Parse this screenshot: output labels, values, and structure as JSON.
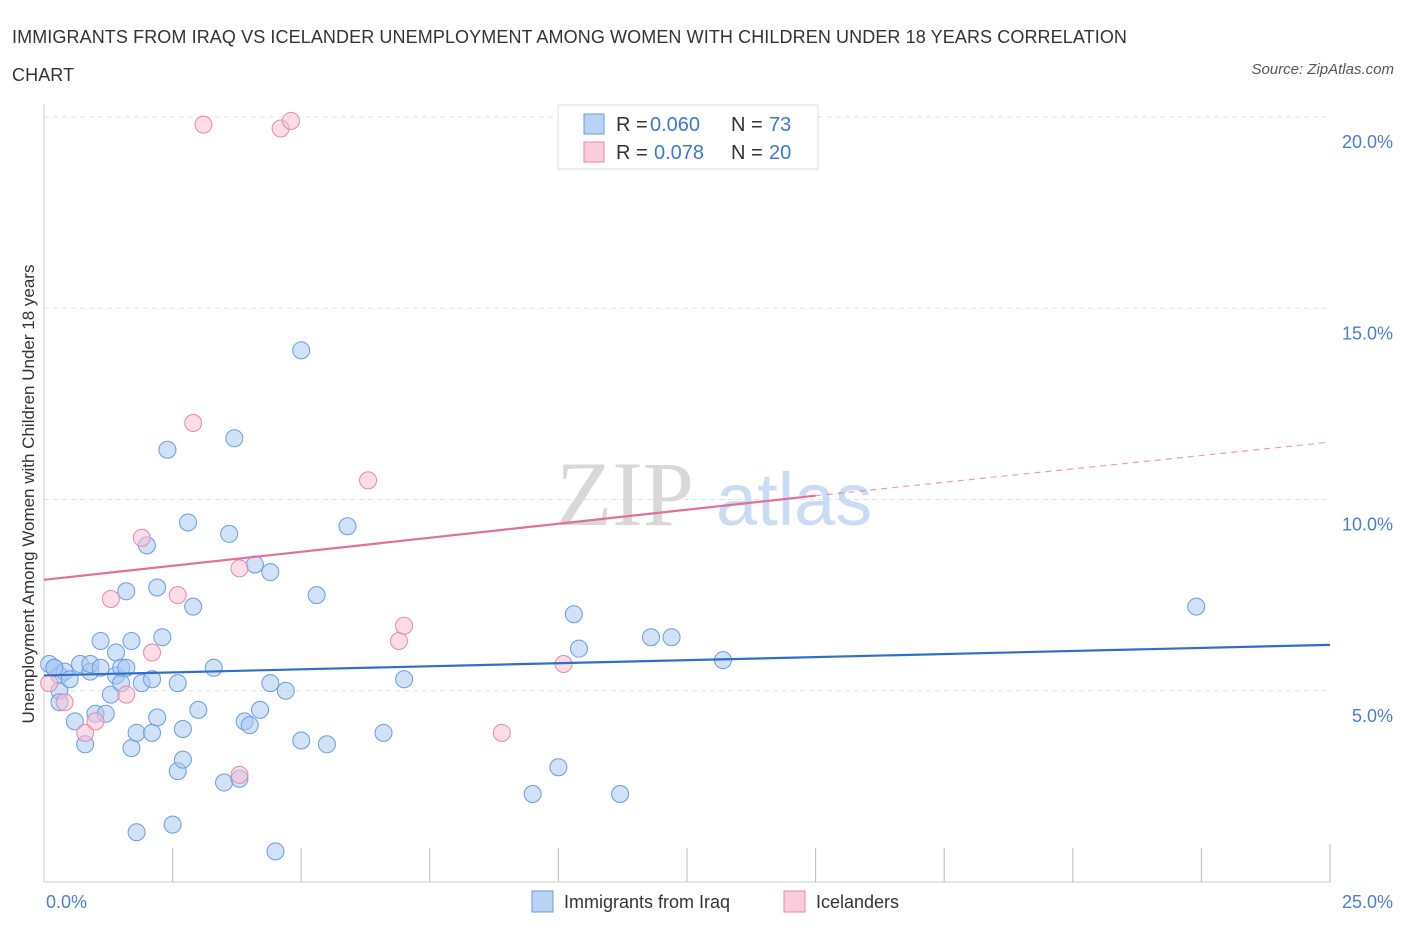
{
  "chart_data": {
    "type": "scatter",
    "title": "IMMIGRANTS FROM IRAQ VS ICELANDER UNEMPLOYMENT AMONG WOMEN WITH CHILDREN UNDER 18 YEARS CORRELATION CHART",
    "source": "Source: ZipAtlas.com",
    "ylabel": "Unemployment Among Women with Children Under 18 years",
    "xlim": [
      0,
      25
    ],
    "ylim": [
      0,
      20
    ],
    "x_tick_labels": [
      "0.0%",
      "25.0%"
    ],
    "y_ticks": [
      5,
      10,
      15,
      20
    ],
    "y_tick_labels": [
      "5.0%",
      "10.0%",
      "15.0%",
      "20.0%"
    ],
    "watermark": {
      "zip": "ZIP",
      "atlas": "atlas"
    },
    "legend": [
      {
        "r_label": "R =",
        "r_value": "0.060",
        "n_label": "N =",
        "n_value": "73"
      },
      {
        "r_label": "R =",
        "r_value": "0.078",
        "n_label": "N =",
        "n_value": "20"
      }
    ],
    "series": [
      {
        "name": "Immigrants from Iraq",
        "color": "#a9c8f2",
        "stroke": "#6b9ddd",
        "line_color": "#2f6fcc",
        "trend": {
          "x0": 0,
          "y0": 5.4,
          "x1": 25,
          "y1": 6.2
        },
        "points": [
          [
            0.1,
            5.7
          ],
          [
            0.2,
            5.6
          ],
          [
            0.3,
            5.4
          ],
          [
            0.3,
            5.0
          ],
          [
            0.3,
            4.7
          ],
          [
            0.4,
            5.5
          ],
          [
            0.5,
            5.3
          ],
          [
            0.6,
            4.2
          ],
          [
            0.7,
            5.7
          ],
          [
            0.8,
            3.6
          ],
          [
            0.9,
            5.5
          ],
          [
            0.9,
            5.7
          ],
          [
            1.0,
            4.4
          ],
          [
            1.1,
            5.6
          ],
          [
            1.1,
            6.3
          ],
          [
            1.2,
            4.4
          ],
          [
            1.3,
            4.9
          ],
          [
            1.4,
            5.4
          ],
          [
            1.4,
            6.0
          ],
          [
            1.5,
            5.2
          ],
          [
            1.5,
            5.6
          ],
          [
            1.6,
            5.6
          ],
          [
            1.6,
            7.6
          ],
          [
            1.7,
            6.3
          ],
          [
            1.7,
            3.5
          ],
          [
            1.8,
            1.3
          ],
          [
            1.8,
            3.9
          ],
          [
            1.9,
            5.2
          ],
          [
            2.0,
            8.8
          ],
          [
            2.1,
            3.9
          ],
          [
            2.1,
            5.3
          ],
          [
            2.2,
            7.7
          ],
          [
            2.2,
            4.3
          ],
          [
            2.3,
            6.4
          ],
          [
            2.4,
            11.3
          ],
          [
            2.5,
            1.5
          ],
          [
            2.6,
            2.9
          ],
          [
            2.6,
            5.2
          ],
          [
            2.7,
            3.2
          ],
          [
            2.7,
            4.0
          ],
          [
            2.8,
            9.4
          ],
          [
            2.9,
            7.2
          ],
          [
            3.0,
            4.5
          ],
          [
            3.3,
            5.6
          ],
          [
            3.5,
            2.6
          ],
          [
            3.6,
            9.1
          ],
          [
            3.7,
            11.6
          ],
          [
            3.8,
            2.7
          ],
          [
            3.9,
            4.2
          ],
          [
            4.0,
            4.1
          ],
          [
            4.1,
            8.3
          ],
          [
            4.2,
            4.5
          ],
          [
            4.4,
            8.1
          ],
          [
            4.4,
            5.2
          ],
          [
            4.5,
            0.8
          ],
          [
            4.7,
            5.0
          ],
          [
            5.0,
            3.7
          ],
          [
            5.0,
            13.9
          ],
          [
            5.3,
            7.5
          ],
          [
            5.5,
            3.6
          ],
          [
            5.9,
            9.3
          ],
          [
            6.6,
            3.9
          ],
          [
            7.0,
            5.3
          ],
          [
            9.5,
            2.3
          ],
          [
            10.0,
            3.0
          ],
          [
            10.3,
            7.0
          ],
          [
            10.4,
            6.1
          ],
          [
            11.2,
            2.3
          ],
          [
            11.8,
            6.4
          ],
          [
            12.2,
            6.4
          ],
          [
            13.2,
            5.8
          ],
          [
            22.4,
            7.2
          ],
          [
            0.2,
            5.6
          ]
        ]
      },
      {
        "name": "Icelanders",
        "color": "#f7c0d3",
        "stroke": "#e48aab",
        "line_color": "#e0709a",
        "trend": {
          "x0": 0,
          "y0": 7.9,
          "x1": 15,
          "y1": 10.1
        },
        "trend_dashed": {
          "x0": 15,
          "y0": 10.1,
          "x1": 25,
          "y1": 11.5
        },
        "points": [
          [
            0.1,
            5.2
          ],
          [
            0.4,
            4.7
          ],
          [
            0.8,
            3.9
          ],
          [
            1.0,
            4.2
          ],
          [
            1.3,
            7.4
          ],
          [
            1.6,
            4.9
          ],
          [
            1.9,
            9.0
          ],
          [
            2.1,
            6.0
          ],
          [
            2.6,
            7.5
          ],
          [
            2.9,
            12.0
          ],
          [
            3.1,
            19.8
          ],
          [
            3.8,
            8.2
          ],
          [
            3.8,
            2.8
          ],
          [
            4.6,
            19.7
          ],
          [
            4.8,
            19.9
          ],
          [
            6.3,
            10.5
          ],
          [
            6.9,
            6.3
          ],
          [
            7.0,
            6.7
          ],
          [
            8.9,
            3.9
          ],
          [
            10.1,
            5.7
          ]
        ]
      }
    ]
  }
}
